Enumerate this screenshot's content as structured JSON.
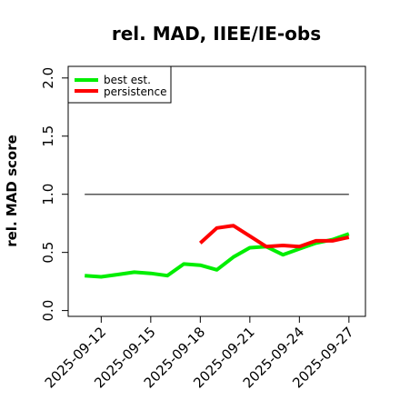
{
  "chart_data": {
    "type": "line",
    "title": "rel. MAD, IIEE/IE-obs",
    "xlabel": "",
    "ylabel": "rel. MAD score",
    "x_tick_labels": [
      "2025-09-12",
      "2025-09-15",
      "2025-09-18",
      "2025-09-21",
      "2025-09-24",
      "2025-09-27"
    ],
    "y_tick_labels": [
      "0.0",
      "0.5",
      "1.0",
      "1.5",
      "2.0"
    ],
    "y_ticks": [
      0.0,
      0.5,
      1.0,
      1.5,
      2.0
    ],
    "ylim": [
      -0.05,
      2.1
    ],
    "xlim": [
      "2025-09-10",
      "2025-09-28"
    ],
    "grid": false,
    "legend_position": "top-left",
    "series": [
      {
        "name": "best est.",
        "color": "#00ee00",
        "x": [
          "2025-09-11",
          "2025-09-12",
          "2025-09-13",
          "2025-09-14",
          "2025-09-15",
          "2025-09-16",
          "2025-09-17",
          "2025-09-18",
          "2025-09-19",
          "2025-09-20",
          "2025-09-21",
          "2025-09-22",
          "2025-09-23",
          "2025-09-24",
          "2025-09-25",
          "2025-09-26",
          "2025-09-27"
        ],
        "values": [
          0.3,
          0.29,
          0.31,
          0.33,
          0.32,
          0.3,
          0.4,
          0.39,
          0.35,
          0.46,
          0.54,
          0.55,
          0.48,
          0.53,
          0.58,
          0.61,
          0.66
        ]
      },
      {
        "name": "persistence",
        "color": "#ff0000",
        "x": [
          "2025-09-18",
          "2025-09-19",
          "2025-09-20",
          "2025-09-21",
          "2025-09-22",
          "2025-09-23",
          "2025-09-24",
          "2025-09-25",
          "2025-09-26",
          "2025-09-27"
        ],
        "values": [
          0.58,
          0.71,
          0.73,
          0.64,
          0.55,
          0.56,
          0.55,
          0.6,
          0.6,
          0.63
        ]
      }
    ],
    "reference_line": {
      "color": "#555555",
      "value": 1.0,
      "x_start": "2025-09-11",
      "x_end": "2025-09-27"
    }
  }
}
